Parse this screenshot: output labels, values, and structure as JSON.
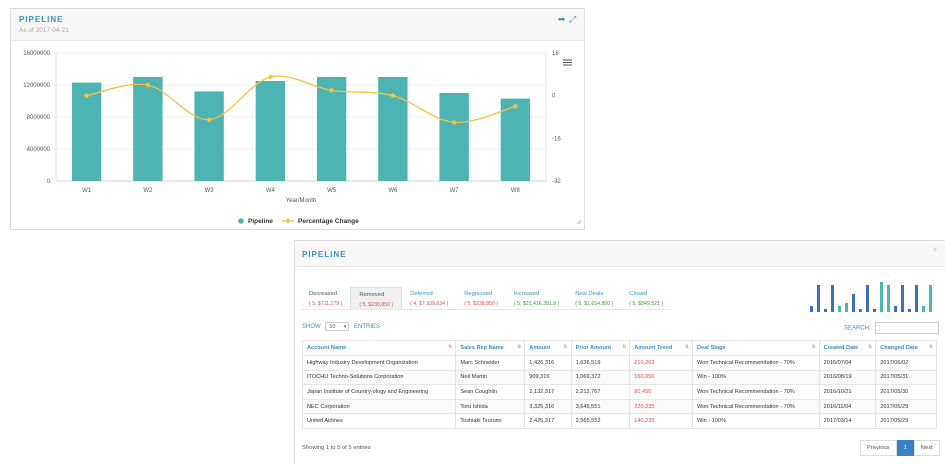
{
  "chart_panel": {
    "title": "PIPELINE",
    "subtitle": "As of 2017-04-21",
    "icons": [
      "share-icon",
      "fullscreen-icon"
    ],
    "menu_icon": "hamburger-icon"
  },
  "chart_data": {
    "type": "bar",
    "categories": [
      "W1",
      "W2",
      "W3",
      "W4",
      "W5",
      "W6",
      "W7",
      "W8"
    ],
    "series": [
      {
        "name": "Pipeline",
        "type": "bar",
        "color": "#4eb3b3",
        "axis": "left",
        "values": [
          12300000,
          13000000,
          11200000,
          12500000,
          13000000,
          13000000,
          11000000,
          10300000
        ]
      },
      {
        "name": "Percentage Change",
        "type": "line",
        "color": "#f5c343",
        "axis": "right",
        "values": [
          0,
          4,
          -9,
          7,
          2,
          0,
          -10,
          -4
        ]
      }
    ],
    "xlabel": "Year/Month",
    "ylim": [
      0,
      16000000
    ],
    "y_ticks": [
      "16000000",
      "12000000",
      "8000000",
      "4000000",
      "0"
    ],
    "y2lim": [
      -32,
      16
    ],
    "y2_ticks": [
      "16",
      "0",
      "-16",
      "-32"
    ],
    "grid": true,
    "legend": "bottom-center"
  },
  "table_panel": {
    "title": "PIPELINE",
    "close_glyph": "×",
    "tabs": [
      {
        "label": "Decreased",
        "value": "( 5, $711,179 )",
        "color": "red"
      },
      {
        "label": "Removed",
        "value": "( 5, $238,850 )",
        "color": "red",
        "active": true
      },
      {
        "label": "Deferred",
        "value": "( 4, $7,339,634 )",
        "color": "red"
      },
      {
        "label": "Regressed",
        "value": "( 5, $238,850 )",
        "color": "red"
      },
      {
        "label": "Increased",
        "value": "( 5, $21,416,391.9 )",
        "color": "green"
      },
      {
        "label": "New Deals",
        "value": "( 5, $1,654,800 )",
        "color": "green"
      },
      {
        "label": "Closed",
        "value": "( 5, $849,521 )",
        "color": "green"
      }
    ],
    "spark_values": [
      2,
      9,
      1,
      9,
      2,
      3,
      6,
      1,
      9,
      1,
      10,
      9,
      2,
      9,
      1,
      9,
      2,
      9
    ],
    "show_label": "SHOW",
    "show_value": "10",
    "entries_label": "ENTRIES",
    "search_label": "SEARCH:",
    "columns": [
      "Account Name",
      "Sales Rep Name",
      "Amount",
      "Prior Amount",
      "Amount Trend",
      "Deal Stage",
      "Created Date",
      "Changed Date"
    ],
    "rows": [
      [
        "Highway Industry Development Organization",
        "Marc Schneider",
        "1,426,316",
        "1,636,519",
        "210,203",
        "Won Technical Recommendation - 70%",
        "2016/07/04",
        "2017/06/02"
      ],
      [
        "ITOCHU Techno-Solutions Corporation",
        "Neil Martin",
        "909,316",
        "1,069,372",
        "160,056",
        "Win - 100%",
        "2016/08/19",
        "2017/05/31"
      ],
      [
        "Japan Institute of Country-ology and Engineering",
        "Sean Coughlin",
        "2,132,317",
        "2,212,767",
        "80,450",
        "Won Technical Recommendation - 70%",
        "2016/10/21",
        "2017/05/30"
      ],
      [
        "NEC Corporation",
        "Toru Ishida",
        "3,325,316",
        "3,645,551",
        "320,235",
        "Won Technical Recommendation - 70%",
        "2016/11/04",
        "2017/05/29"
      ],
      [
        "United Airlines",
        "Toshiaki Tsurumi",
        "2,425,317",
        "2,565,552",
        "140,235",
        "Win - 100%",
        "2017/03/14",
        "2017/05/29"
      ]
    ],
    "showing_text": "Showing 1 to 5 of 5 entries",
    "pager": {
      "previous": "Previous",
      "current": "1",
      "next": "Next"
    }
  }
}
